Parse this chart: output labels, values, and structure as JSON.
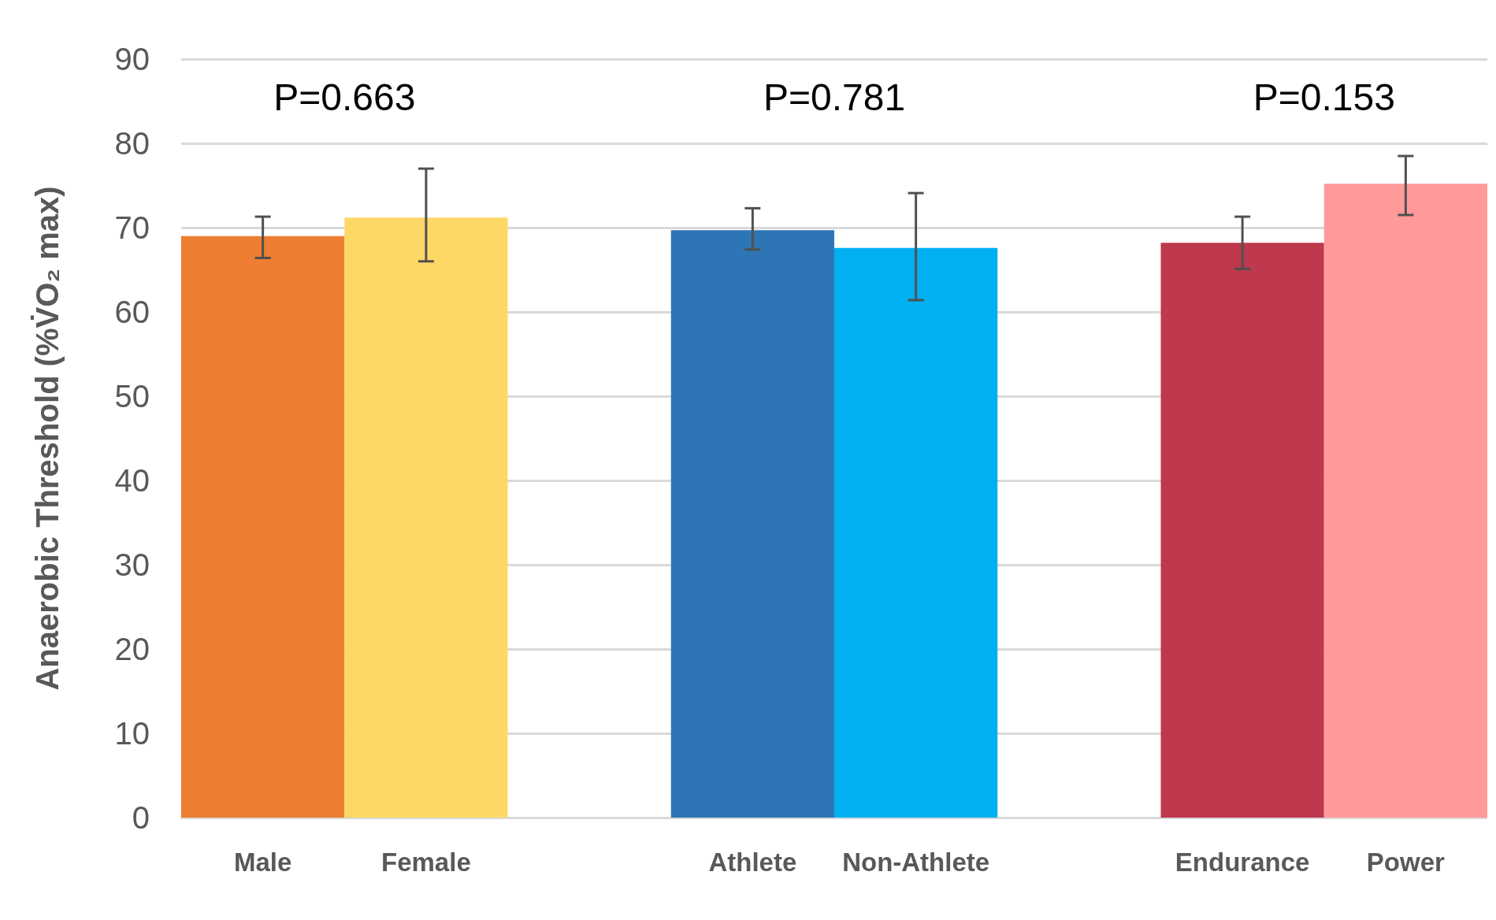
{
  "chart_data": {
    "type": "bar",
    "ylabel": "Anaerobic Threshold (%V̇O₂ max)",
    "categories": [
      "Male",
      "Female",
      null,
      "Athlete",
      "Non-Athlete",
      null,
      "Endurance",
      "Power"
    ],
    "values": [
      69.0,
      71.2,
      null,
      69.7,
      67.6,
      null,
      68.2,
      75.2
    ],
    "errors": [
      [
        66.4,
        71.3
      ],
      [
        66.0,
        77.0
      ],
      null,
      [
        67.4,
        72.3
      ],
      [
        61.4,
        74.1
      ],
      null,
      [
        65.1,
        71.3
      ],
      [
        71.5,
        78.5
      ]
    ],
    "colors": [
      "#ed7d31",
      "#fdd866",
      null,
      "#2e75b6",
      "#00b0f0",
      null,
      "#be384e",
      "#ff999a"
    ],
    "ylim": [
      0,
      90
    ],
    "yticks": [
      0,
      10,
      20,
      30,
      40,
      50,
      60,
      70,
      80,
      90
    ],
    "grid": "y",
    "annotations": [
      "P=0.663",
      "P=0.781",
      "P=0.153"
    ]
  }
}
